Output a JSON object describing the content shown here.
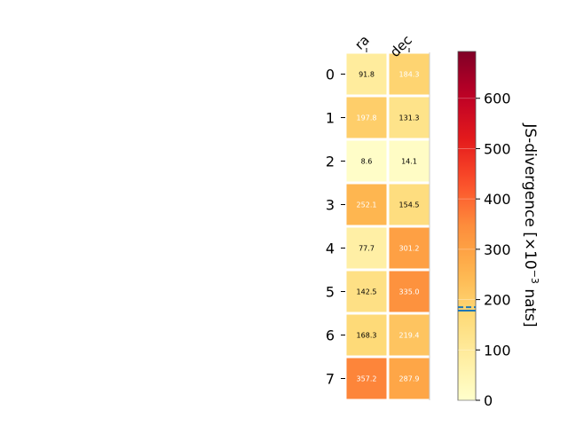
{
  "chart_data": {
    "type": "heatmap",
    "x_categories": [
      "ra",
      "dec"
    ],
    "y_categories": [
      "0",
      "1",
      "2",
      "3",
      "4",
      "5",
      "6",
      "7"
    ],
    "values": [
      [
        91.8,
        184.3
      ],
      [
        197.8,
        131.3
      ],
      [
        8.6,
        14.1
      ],
      [
        252.1,
        154.5
      ],
      [
        77.7,
        301.2
      ],
      [
        142.5,
        335.0
      ],
      [
        168.3,
        219.4
      ],
      [
        357.2,
        287.9
      ]
    ],
    "value_labels": [
      [
        "91.8",
        "184.3"
      ],
      [
        "197.8",
        "131.3"
      ],
      [
        "8.6",
        "14.1"
      ],
      [
        "252.1",
        "154.5"
      ],
      [
        "77.7",
        "301.2"
      ],
      [
        "142.5",
        "335.0"
      ],
      [
        "168.3",
        "219.4"
      ],
      [
        "357.2",
        "287.9"
      ]
    ],
    "colorbar": {
      "label_main": "JS-divergence [×10",
      "label_exponent": "−3",
      "label_tail": " nats]",
      "range": [
        0,
        693
      ],
      "ticks": [
        0,
        100,
        200,
        300,
        400,
        500,
        600
      ],
      "tick_labels": [
        "0",
        "100",
        "200",
        "300",
        "400",
        "500",
        "600"
      ],
      "colormap": "YlOrRd",
      "marker_values": [
        178,
        185
      ],
      "marker_color": "#1f77b4"
    },
    "grid": false,
    "legend": "none"
  }
}
